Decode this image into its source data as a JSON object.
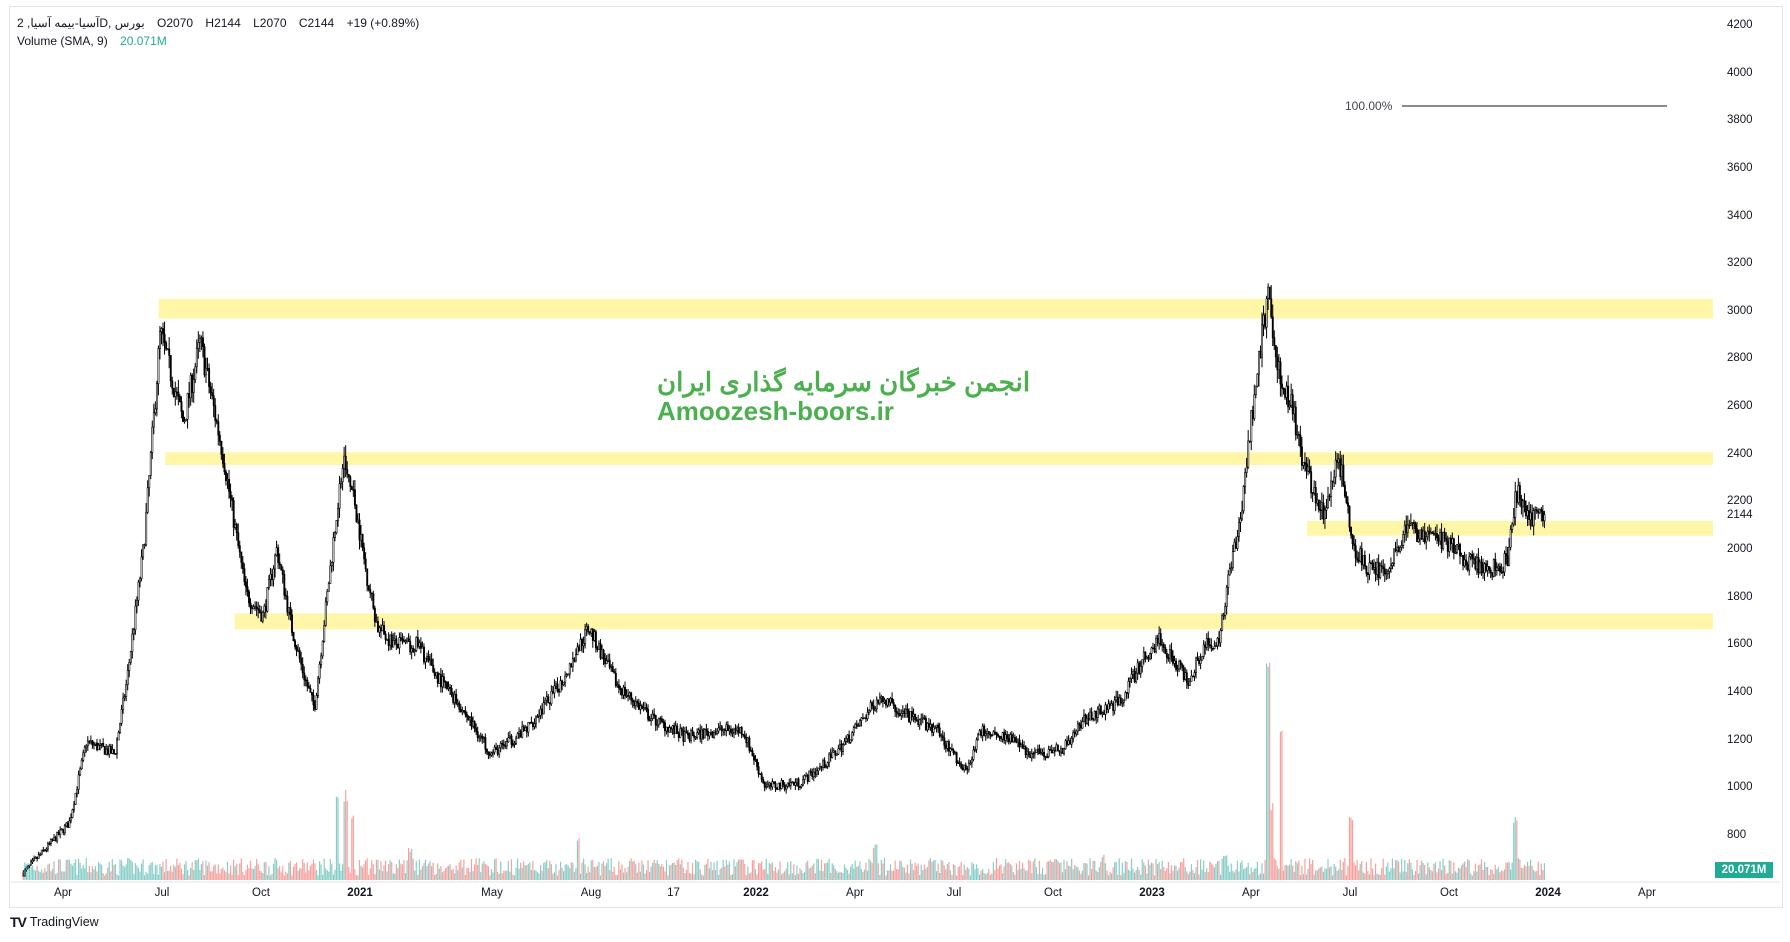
{
  "legend": {
    "symbol": "آسیا-بیمه آسیا, 2D, بورس",
    "open": "O2070",
    "high": "H2144",
    "low": "L2070",
    "close": "C2144",
    "change": "+19 (+0.89%)",
    "volume_label": "Volume (SMA, 9)",
    "volume_value": "20.071M"
  },
  "watermark": {
    "line1": "انجمن خبرگان سرمایه گذاری ایران",
    "line2": "Amoozesh-boors.ir"
  },
  "fib_label": "100.00%",
  "volume_badge": "20.071M",
  "brand": "TradingView",
  "colors": {
    "up_volume": "#26a69a",
    "down_volume": "#ef5350",
    "zone": "#fff59d",
    "watermark": "#4caf50",
    "badge": "#22ab94"
  },
  "chart_data": {
    "type": "candlestick",
    "time_unit": "months since 2020-04",
    "ylim": [
      800,
      4200
    ],
    "price_ticks": [
      "4200",
      "4000",
      "3800",
      "3600",
      "3400",
      "3200",
      "3000",
      "2800",
      "2600",
      "2400",
      "2200",
      "2144",
      "2000",
      "1800",
      "1600",
      "1400",
      "1200",
      "1000",
      "800"
    ],
    "time_ticks": [
      {
        "label": "Apr",
        "t": 0
      },
      {
        "label": "Jul",
        "t": 3
      },
      {
        "label": "Oct",
        "t": 6
      },
      {
        "label": "2021",
        "t": 9,
        "year": true
      },
      {
        "label": "May",
        "t": 13
      },
      {
        "label": "Aug",
        "t": 16
      },
      {
        "label": "17",
        "t": 18.5
      },
      {
        "label": "2022",
        "t": 21,
        "year": true
      },
      {
        "label": "Apr",
        "t": 24
      },
      {
        "label": "Jul",
        "t": 27
      },
      {
        "label": "Oct",
        "t": 30
      },
      {
        "label": "2023",
        "t": 33,
        "year": true
      },
      {
        "label": "Apr",
        "t": 36
      },
      {
        "label": "Jul",
        "t": 39
      },
      {
        "label": "Oct",
        "t": 42
      },
      {
        "label": "2024",
        "t": 45,
        "year": true
      },
      {
        "label": "Apr",
        "t": 48
      }
    ],
    "price_path": [
      [
        -1.22,
        640
      ],
      [
        0.17,
        850
      ],
      [
        0.69,
        1190
      ],
      [
        1.55,
        1140
      ],
      [
        1.9,
        1430
      ],
      [
        2.42,
        2000
      ],
      [
        2.59,
        2290
      ],
      [
        2.93,
        2910
      ],
      [
        3.28,
        2720
      ],
      [
        3.63,
        2530
      ],
      [
        4.14,
        2870
      ],
      [
        4.49,
        2630
      ],
      [
        4.84,
        2390
      ],
      [
        5.18,
        2100
      ],
      [
        5.53,
        1810
      ],
      [
        6.05,
        1720
      ],
      [
        6.46,
        2000
      ],
      [
        6.91,
        1670
      ],
      [
        7.26,
        1480
      ],
      [
        7.6,
        1330
      ],
      [
        7.95,
        1760
      ],
      [
        8.47,
        2390
      ],
      [
        8.82,
        2200
      ],
      [
        9.16,
        1910
      ],
      [
        9.51,
        1670
      ],
      [
        10.03,
        1600
      ],
      [
        10.72,
        1600
      ],
      [
        11.24,
        1480
      ],
      [
        11.93,
        1360
      ],
      [
        12.97,
        1140
      ],
      [
        14.01,
        1240
      ],
      [
        15.04,
        1430
      ],
      [
        15.91,
        1670
      ],
      [
        16.77,
        1430
      ],
      [
        17.81,
        1290
      ],
      [
        18.85,
        1210
      ],
      [
        19.89,
        1240
      ],
      [
        20.58,
        1240
      ],
      [
        21.27,
        1000
      ],
      [
        22.31,
        1020
      ],
      [
        23.0,
        1090
      ],
      [
        23.69,
        1190
      ],
      [
        24.73,
        1380
      ],
      [
        25.42,
        1310
      ],
      [
        26.46,
        1240
      ],
      [
        27.32,
        1070
      ],
      [
        27.84,
        1240
      ],
      [
        28.71,
        1210
      ],
      [
        29.23,
        1140
      ],
      [
        30.26,
        1160
      ],
      [
        30.96,
        1290
      ],
      [
        32.0,
        1360
      ],
      [
        32.69,
        1530
      ],
      [
        33.2,
        1620
      ],
      [
        34.07,
        1450
      ],
      [
        34.59,
        1600
      ],
      [
        34.93,
        1570
      ],
      [
        35.28,
        1860
      ],
      [
        35.63,
        2100
      ],
      [
        35.9,
        2430
      ],
      [
        36.14,
        2720
      ],
      [
        36.49,
        3060
      ],
      [
        36.84,
        2720
      ],
      [
        37.18,
        2630
      ],
      [
        37.53,
        2390
      ],
      [
        37.87,
        2240
      ],
      [
        38.22,
        2150
      ],
      [
        38.64,
        2390
      ],
      [
        39.08,
        2000
      ],
      [
        39.6,
        1910
      ],
      [
        40.12,
        1910
      ],
      [
        40.64,
        2080
      ],
      [
        41.68,
        2050
      ],
      [
        42.54,
        1950
      ],
      [
        43.06,
        1910
      ],
      [
        43.76,
        1950
      ],
      [
        44.03,
        2240
      ],
      [
        44.45,
        2120
      ],
      [
        44.9,
        2144
      ]
    ],
    "zones": [
      {
        "from": 2968,
        "to": 3050,
        "start_t": 2.9
      },
      {
        "from": 2353,
        "to": 2406,
        "start_t": 3.1
      },
      {
        "from": 2056,
        "to": 2118,
        "start_t": 37.7
      },
      {
        "from": 1663,
        "to": 1730,
        "start_t": 5.2
      }
    ],
    "fib_level": {
      "price": 3860,
      "label": "100.00%"
    },
    "volume_spikes": [
      [
        36.49,
        1.0
      ],
      [
        36.9,
        0.72
      ],
      [
        36.6,
        0.35
      ],
      [
        8.3,
        0.38
      ],
      [
        8.55,
        0.42
      ],
      [
        8.75,
        0.3
      ],
      [
        39.0,
        0.3
      ],
      [
        44.0,
        0.3
      ],
      [
        15.6,
        0.2
      ],
      [
        24.6,
        0.17
      ],
      [
        10.5,
        0.15
      ],
      [
        35.2,
        0.12
      ],
      [
        31.5,
        0.12
      ]
    ],
    "last_price": 2144
  }
}
